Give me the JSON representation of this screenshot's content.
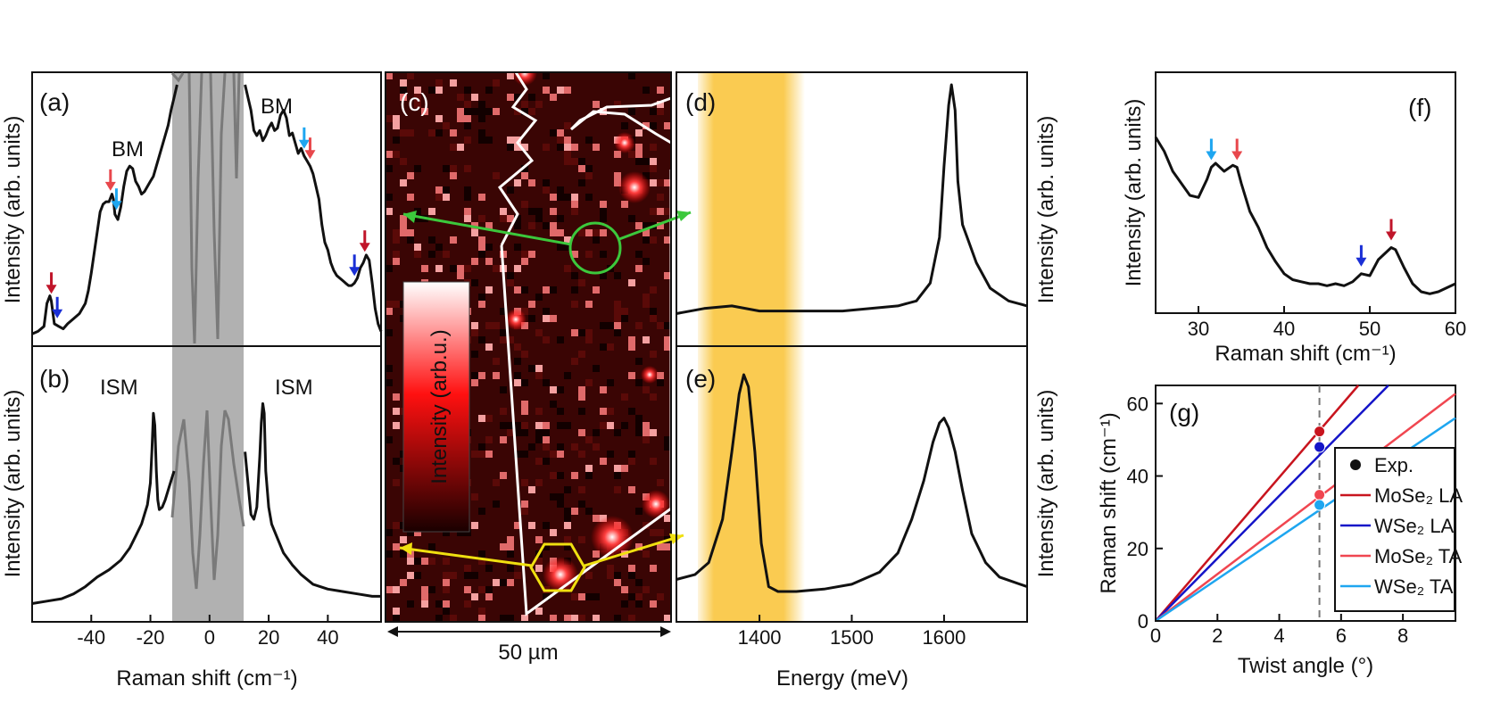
{
  "colors": {
    "bm_arrow_dark_red": "#c0152a",
    "bm_arrow_blue": "#1a2fd6",
    "bm_arrow_light_blue": "#1ea6f0",
    "bm_arrow_salmon": "#e8474c",
    "yellow_band": "#f9c232",
    "gray_band": "#9e9e9e",
    "map_background": "#3a0504",
    "map_outline": "#ffffff",
    "marker_green": "#3cc83c",
    "marker_yellow": "#f0e010",
    "MoSe2_LA": "#c8141e",
    "WSe2_LA": "#1414c8",
    "MoSe2_TA": "#f04650",
    "WSe2_TA": "#1ea6f0"
  },
  "panels": {
    "a": {
      "label": "(a)",
      "ann_left": "BM",
      "ann_right": "BM",
      "ylabel": "Intensity (arb. units)"
    },
    "b": {
      "label": "(b)",
      "ann_left": "ISM",
      "ann_right": "ISM",
      "ylabel": "Intensity (arb. units)"
    },
    "ab": {
      "xlabel": "Raman shift (cm⁻¹)",
      "xticks": [
        "-40",
        "-20",
        "0",
        "20",
        "40"
      ]
    },
    "c": {
      "label": "(c)",
      "colorbar_label": "Intensity  (arb.u.)",
      "scale_bar": "50 µm"
    },
    "d": {
      "label": "(d)",
      "ylabel": "Intensity (arb. units)"
    },
    "e": {
      "label": "(e)",
      "ylabel": "Intensity (arb. units)"
    },
    "de": {
      "xlabel": "Energy (meV)",
      "xticks": [
        "1400",
        "1500",
        "1600"
      ]
    },
    "f": {
      "label": "(f)",
      "ylabel": "Intensity (arb. units)",
      "xlabel": "Raman shift (cm⁻¹)",
      "xticks": [
        "30",
        "40",
        "50",
        "60"
      ]
    },
    "g": {
      "label": "(g)",
      "ylabel": "Raman shift (cm⁻¹)",
      "xlabel": "Twist angle (°)",
      "xticks": [
        "0",
        "2",
        "4",
        "6",
        "8"
      ],
      "yticks": [
        "0",
        "20",
        "40",
        "60"
      ],
      "legend": [
        "Exp.",
        "MoSe₂ LA",
        "WSe₂ LA",
        "MoSe₂ TA",
        "WSe₂ TA"
      ]
    }
  },
  "chart_data": [
    {
      "panel": "a",
      "type": "line",
      "xlabel": "Raman shift (cm⁻¹)",
      "ylabel": "Intensity (arb. units)",
      "xlim": [
        -60,
        58
      ],
      "ylim": [
        0,
        1
      ],
      "shaded_x_range": [
        -12,
        12
      ],
      "series": [
        {
          "x": [
            -60,
            -58,
            -56,
            -55,
            -54,
            -53.5,
            -52.5,
            -51,
            -49.5,
            -48,
            -46,
            -44,
            -42,
            -41,
            -40,
            -39,
            -38,
            -37,
            -36,
            -35,
            -34,
            -33,
            -32.5,
            -32,
            -31,
            -30,
            -29,
            -28,
            -27,
            -26,
            -25,
            -24,
            -23,
            -22,
            -21,
            -20,
            -19,
            -18,
            -17,
            -16,
            -15,
            -14,
            -13,
            -12,
            -11
          ],
          "y": [
            0.02,
            0.03,
            0.05,
            0.14,
            0.17,
            0.15,
            0.06,
            0.05,
            0.04,
            0.06,
            0.08,
            0.1,
            0.14,
            0.19,
            0.26,
            0.34,
            0.42,
            0.5,
            0.53,
            0.54,
            0.54,
            0.57,
            0.55,
            0.49,
            0.47,
            0.52,
            0.6,
            0.66,
            0.68,
            0.67,
            0.62,
            0.6,
            0.57,
            0.58,
            0.6,
            0.62,
            0.64,
            0.68,
            0.72,
            0.76,
            0.8,
            0.84,
            0.9,
            0.95,
            1.0
          ]
        },
        {
          "x": [
            12,
            13,
            14,
            15,
            16,
            17,
            18,
            19,
            20,
            21,
            22,
            23,
            24,
            25,
            26,
            27,
            28,
            29,
            30,
            31,
            32,
            33,
            34,
            35,
            36,
            37,
            38,
            39,
            40,
            41,
            42,
            43,
            44,
            45,
            46,
            47,
            48,
            49,
            50,
            51,
            52,
            53,
            54,
            55,
            56,
            57,
            58
          ],
          "y": [
            1.0,
            0.95,
            0.9,
            0.82,
            0.8,
            0.82,
            0.78,
            0.8,
            0.83,
            0.85,
            0.82,
            0.83,
            0.88,
            0.9,
            0.87,
            0.8,
            0.81,
            0.77,
            0.73,
            0.75,
            0.72,
            0.7,
            0.68,
            0.65,
            0.6,
            0.55,
            0.45,
            0.38,
            0.35,
            0.3,
            0.27,
            0.25,
            0.24,
            0.23,
            0.22,
            0.21,
            0.21,
            0.22,
            0.24,
            0.28,
            0.3,
            0.33,
            0.31,
            0.22,
            0.12,
            0.06,
            0.03
          ]
        }
      ],
      "arrows": [
        {
          "x": -53.5,
          "color": "dark_red"
        },
        {
          "x": -51.5,
          "color": "blue"
        },
        {
          "x": -33.5,
          "color": "salmon"
        },
        {
          "x": -31.5,
          "color": "light_blue"
        },
        {
          "x": 32.0,
          "color": "light_blue"
        },
        {
          "x": 34.0,
          "color": "salmon"
        },
        {
          "x": 49.0,
          "color": "blue"
        },
        {
          "x": 52.5,
          "color": "dark_red"
        }
      ]
    },
    {
      "panel": "b",
      "type": "line",
      "xlabel": "Raman shift (cm⁻¹)",
      "ylabel": "Intensity (arb. units)",
      "xlim": [
        -60,
        58
      ],
      "ylim": [
        0,
        1
      ],
      "shaded_x_range": [
        -12,
        12
      ],
      "series": [
        {
          "x": [
            -60,
            -55,
            -50,
            -46,
            -42,
            -38,
            -34,
            -30,
            -27,
            -25,
            -23,
            -22,
            -21,
            -20,
            -19.5,
            -19,
            -18.5,
            -18,
            -17.5,
            -17,
            -16,
            -15,
            -14,
            -13,
            -12
          ],
          "y": [
            0.05,
            0.06,
            0.07,
            0.09,
            0.12,
            0.16,
            0.19,
            0.23,
            0.28,
            0.33,
            0.38,
            0.42,
            0.46,
            0.55,
            0.68,
            0.84,
            0.79,
            0.6,
            0.48,
            0.44,
            0.45,
            0.48,
            0.52,
            0.56,
            0.6
          ]
        },
        {
          "x": [
            12,
            13,
            14,
            15,
            16,
            17,
            17.5,
            18,
            18.5,
            19,
            20,
            21,
            23,
            25,
            28,
            31,
            35,
            40,
            45,
            50,
            55,
            58
          ],
          "y": [
            0.68,
            0.55,
            0.42,
            0.4,
            0.45,
            0.66,
            0.8,
            0.88,
            0.84,
            0.6,
            0.45,
            0.38,
            0.32,
            0.26,
            0.21,
            0.17,
            0.13,
            0.11,
            0.1,
            0.09,
            0.08,
            0.08
          ]
        }
      ]
    },
    {
      "panel": "d",
      "type": "line",
      "xlabel": "Energy (meV)",
      "ylabel": "Intensity (arb. units)",
      "xlim": [
        1310,
        1690
      ],
      "ylim": [
        0,
        1
      ],
      "shaded_x_range": [
        1320,
        1440
      ],
      "series": [
        {
          "x": [
            1310,
            1340,
            1370,
            1400,
            1430,
            1460,
            1490,
            1520,
            1550,
            1570,
            1585,
            1595,
            1600,
            1605,
            1608,
            1612,
            1615,
            1620,
            1625,
            1635,
            1650,
            1670,
            1690
          ],
          "y": [
            0.1,
            0.12,
            0.13,
            0.11,
            0.11,
            0.11,
            0.11,
            0.12,
            0.13,
            0.15,
            0.22,
            0.4,
            0.68,
            0.92,
            1.0,
            0.9,
            0.62,
            0.45,
            0.4,
            0.3,
            0.2,
            0.15,
            0.13
          ]
        }
      ]
    },
    {
      "panel": "e",
      "type": "line",
      "xlabel": "Energy (meV)",
      "ylabel": "Intensity (arb. units)",
      "xlim": [
        1310,
        1690
      ],
      "ylim": [
        0,
        1
      ],
      "shaded_x_range": [
        1320,
        1440
      ],
      "series": [
        {
          "x": [
            1310,
            1330,
            1345,
            1360,
            1370,
            1378,
            1383,
            1388,
            1395,
            1402,
            1410,
            1420,
            1440,
            1470,
            1500,
            1530,
            1550,
            1565,
            1578,
            1588,
            1595,
            1600,
            1605,
            1612,
            1620,
            1630,
            1645,
            1660,
            1690
          ],
          "y": [
            0.15,
            0.17,
            0.22,
            0.4,
            0.68,
            0.92,
            1.0,
            0.95,
            0.68,
            0.3,
            0.12,
            0.1,
            0.1,
            0.11,
            0.13,
            0.18,
            0.26,
            0.4,
            0.56,
            0.72,
            0.8,
            0.82,
            0.78,
            0.68,
            0.52,
            0.34,
            0.22,
            0.16,
            0.12
          ]
        }
      ]
    },
    {
      "panel": "f",
      "type": "line",
      "xlabel": "Raman shift (cm⁻¹)",
      "ylabel": "Intensity (arb. units)",
      "xlim": [
        25,
        60
      ],
      "ylim": [
        0,
        1
      ],
      "series": [
        {
          "x": [
            25,
            26,
            27,
            28,
            29,
            30,
            31,
            31.5,
            32,
            33,
            34,
            34.5,
            35,
            36,
            37,
            38,
            39,
            40,
            41,
            42,
            43,
            44,
            45,
            46,
            47,
            48,
            49,
            50,
            51,
            52,
            52.5,
            53,
            54,
            55,
            56,
            57,
            58,
            59,
            60
          ],
          "y": [
            0.85,
            0.78,
            0.68,
            0.62,
            0.56,
            0.55,
            0.64,
            0.7,
            0.72,
            0.68,
            0.71,
            0.7,
            0.62,
            0.48,
            0.4,
            0.3,
            0.23,
            0.17,
            0.14,
            0.13,
            0.12,
            0.12,
            0.11,
            0.12,
            0.11,
            0.13,
            0.17,
            0.16,
            0.24,
            0.28,
            0.3,
            0.29,
            0.2,
            0.12,
            0.08,
            0.07,
            0.08,
            0.1,
            0.12
          ]
        }
      ],
      "arrows": [
        {
          "x": 31.5,
          "color": "light_blue"
        },
        {
          "x": 34.5,
          "color": "salmon"
        },
        {
          "x": 49.0,
          "color": "blue"
        },
        {
          "x": 52.5,
          "color": "dark_red"
        }
      ]
    },
    {
      "panel": "g",
      "type": "line",
      "xlabel": "Twist angle (°)",
      "ylabel": "Raman shift (cm⁻¹)",
      "xlim": [
        0,
        9.7
      ],
      "ylim": [
        0,
        65
      ],
      "vline_x": 5.3,
      "series": [
        {
          "name": "MoSe₂ LA",
          "x": [
            0,
            6.8
          ],
          "y": [
            0,
            67.4
          ]
        },
        {
          "name": "WSe₂ LA",
          "x": [
            0,
            7.6
          ],
          "y": [
            0,
            65.6
          ]
        },
        {
          "name": "MoSe₂ TA",
          "x": [
            0,
            9.7
          ],
          "y": [
            0,
            62.7
          ]
        },
        {
          "name": "WSe₂ TA",
          "x": [
            0,
            9.7
          ],
          "y": [
            0,
            56.0
          ]
        }
      ],
      "points": [
        {
          "series": "MoSe₂ LA",
          "x": 5.3,
          "y": 52.3
        },
        {
          "series": "WSe₂ LA",
          "x": 5.3,
          "y": 48.0
        },
        {
          "series": "MoSe₂ TA",
          "x": 5.3,
          "y": 34.8
        },
        {
          "series": "WSe₂ TA",
          "x": 5.3,
          "y": 32.0
        }
      ]
    }
  ]
}
